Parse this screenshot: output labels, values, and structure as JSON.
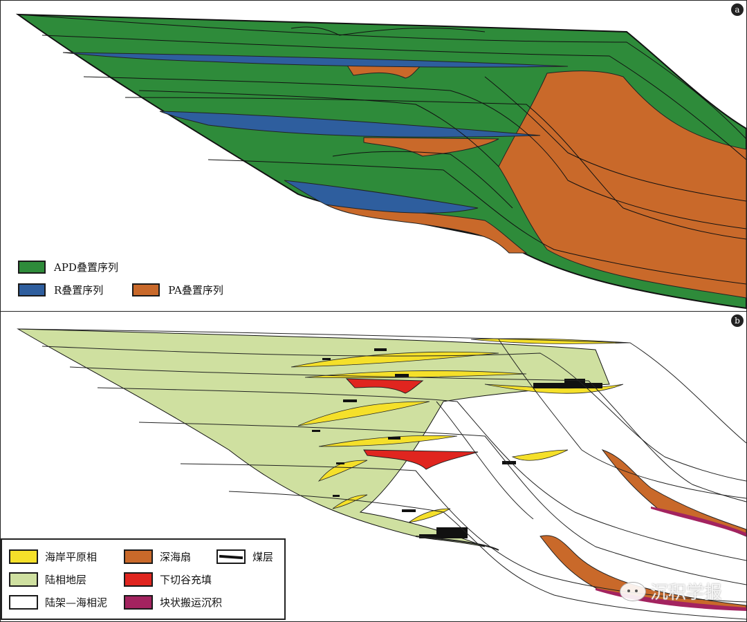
{
  "panel_a": {
    "label": "a",
    "legend": [
      {
        "label": "APD叠置序列",
        "color": "#2e8b3a"
      },
      {
        "label": "R叠置序列",
        "color": "#2e5e9e"
      },
      {
        "label": "PA叠置序列",
        "color": "#c9692a"
      }
    ]
  },
  "panel_b": {
    "label": "b",
    "legend": [
      {
        "label": "海岸平原相",
        "color": "#f5e02a"
      },
      {
        "label": "深海扇",
        "color": "#c9692a"
      },
      {
        "label": "煤层",
        "color": "#111111"
      },
      {
        "label": "陆相地层",
        "color": "#cfe0a0"
      },
      {
        "label": "下切谷充填",
        "color": "#e0251f"
      },
      {
        "label": "陆架—海相泥",
        "color": "#ffffff"
      },
      {
        "label": "块状搬运沉积",
        "color": "#a3235f"
      }
    ]
  },
  "watermark": "沉积学报"
}
